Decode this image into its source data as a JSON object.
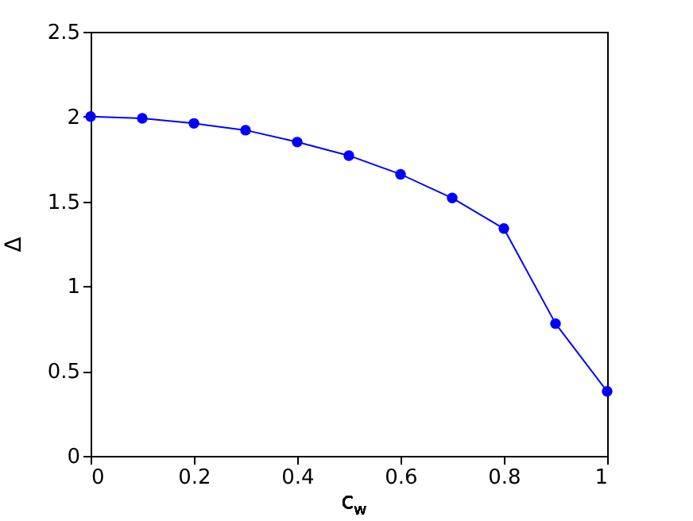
{
  "chart_data": {
    "type": "line",
    "x": [
      0,
      0.1,
      0.2,
      0.3,
      0.4,
      0.5,
      0.6,
      0.7,
      0.8,
      0.9,
      1.0
    ],
    "series": [
      {
        "color": "#0000ff",
        "values": [
          2.0,
          1.99,
          1.96,
          1.92,
          1.85,
          1.77,
          1.66,
          1.52,
          1.34,
          0.78,
          0.38
        ]
      }
    ],
    "xlabel": "c$_{w}$",
    "ylabel": "Δ",
    "xlim": [
      0,
      1
    ],
    "xticks": [
      0,
      0.2,
      0.4,
      0.6,
      0.8,
      1
    ],
    "ylim": [
      0,
      2.5
    ],
    "yticks": [
      0,
      0.5,
      1,
      1.5,
      2,
      2.5
    ],
    "marker": "circle",
    "line_style": "solid",
    "grid": false
  }
}
